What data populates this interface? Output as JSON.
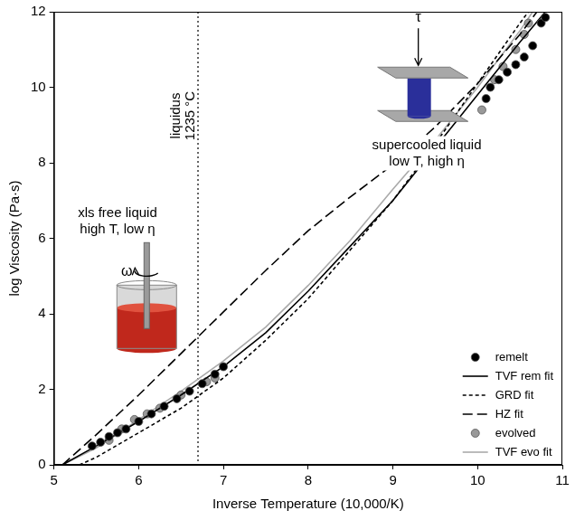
{
  "chart_data": {
    "type": "scatter",
    "xlabel": "Inverse Temperature (10,000/K)",
    "ylabel": "log Viscosity (Pa·s)",
    "xlim": [
      5,
      11
    ],
    "xticks": [
      5,
      6,
      7,
      8,
      9,
      10,
      11
    ],
    "ylim": [
      0,
      12
    ],
    "yticks": [
      0,
      2,
      4,
      6,
      8,
      10,
      12
    ],
    "grid": false,
    "legend": "bottom right",
    "series": [
      {
        "name": "remelt",
        "type": "scatter",
        "marker": "circle",
        "color": "#000000",
        "x": [
          5.45,
          5.55,
          5.65,
          5.75,
          5.85,
          6.0,
          6.15,
          6.3,
          6.45,
          6.6,
          6.75,
          6.9,
          7.0,
          10.1,
          10.15,
          10.25,
          10.35,
          10.45,
          10.55,
          10.65,
          10.75,
          10.8
        ],
        "values": [
          0.5,
          0.6,
          0.75,
          0.85,
          0.95,
          1.15,
          1.35,
          1.55,
          1.75,
          1.95,
          2.15,
          2.4,
          2.6,
          9.7,
          10.0,
          10.2,
          10.4,
          10.6,
          10.8,
          11.1,
          11.7,
          11.85
        ]
      },
      {
        "name": "TVF rem fit",
        "type": "line",
        "line_style": "solid",
        "color": "#000000",
        "x": [
          5.1,
          5.5,
          6.0,
          6.5,
          7.0,
          7.5,
          8.0,
          8.5,
          9.0,
          9.5,
          10.0,
          10.5,
          10.8
        ],
        "values": [
          0,
          0.5,
          1.15,
          1.85,
          2.6,
          3.5,
          4.6,
          5.8,
          7.0,
          8.4,
          9.8,
          11.2,
          12
        ]
      },
      {
        "name": "GRD fit",
        "type": "line",
        "line_style": "dashed",
        "color": "#000000",
        "x": [
          5.3,
          5.5,
          6.0,
          6.5,
          7.0,
          7.5,
          8.0,
          8.5,
          9.0,
          9.5,
          10.0,
          10.5,
          10.6
        ],
        "values": [
          0,
          0.2,
          0.85,
          1.5,
          2.3,
          3.3,
          4.4,
          5.7,
          7.0,
          8.5,
          10.1,
          11.7,
          12
        ]
      },
      {
        "name": "HZ fit",
        "type": "line",
        "line_style": "longdash",
        "color": "#000000",
        "x": [
          5.1,
          5.5,
          6.0,
          6.5,
          7.0,
          7.5,
          8.0,
          8.5,
          9.0,
          9.5,
          10.0,
          10.5,
          10.7
        ],
        "values": [
          0,
          0.8,
          1.85,
          2.95,
          4.05,
          5.15,
          6.2,
          7.1,
          7.95,
          8.95,
          10.1,
          11.4,
          12
        ]
      },
      {
        "name": "evolved",
        "type": "scatter",
        "marker": "circle",
        "color": "#999999",
        "x": [
          5.65,
          5.8,
          5.95,
          6.1,
          6.25,
          6.5,
          6.8,
          6.9,
          10.05,
          10.2,
          10.3,
          10.45,
          10.55,
          10.6
        ],
        "values": [
          0.65,
          0.95,
          1.2,
          1.35,
          1.5,
          1.85,
          2.2,
          2.3,
          9.4,
          10.2,
          10.55,
          11.0,
          11.4,
          11.7
        ]
      },
      {
        "name": "TVF evo fit",
        "type": "line",
        "line_style": "solid",
        "color": "#aaaaaa",
        "x": [
          5.1,
          5.5,
          6.0,
          6.5,
          7.0,
          7.5,
          8.0,
          8.5,
          9.0,
          9.5,
          10.0,
          10.5,
          10.65
        ],
        "values": [
          0,
          0.45,
          1.2,
          1.95,
          2.75,
          3.65,
          4.75,
          5.95,
          7.3,
          8.6,
          10.0,
          11.5,
          12
        ]
      }
    ],
    "reference_line": {
      "x": 6.7,
      "label": [
        "liquidus",
        "1235 °C"
      ],
      "line_style": "dotted"
    },
    "annotations": [
      {
        "text": [
          "xls free liquid",
          "high T, low η"
        ],
        "x": 5.75,
        "y": 6.45
      },
      {
        "text": [
          "supercooled liquid",
          "low T, high η"
        ],
        "x": 9.4,
        "y": 8.25
      }
    ],
    "symbols": [
      {
        "text": "ω",
        "x": 5.86,
        "y": 4.4
      },
      {
        "text": "τ",
        "x": 9.3,
        "y": 11.85
      }
    ]
  }
}
